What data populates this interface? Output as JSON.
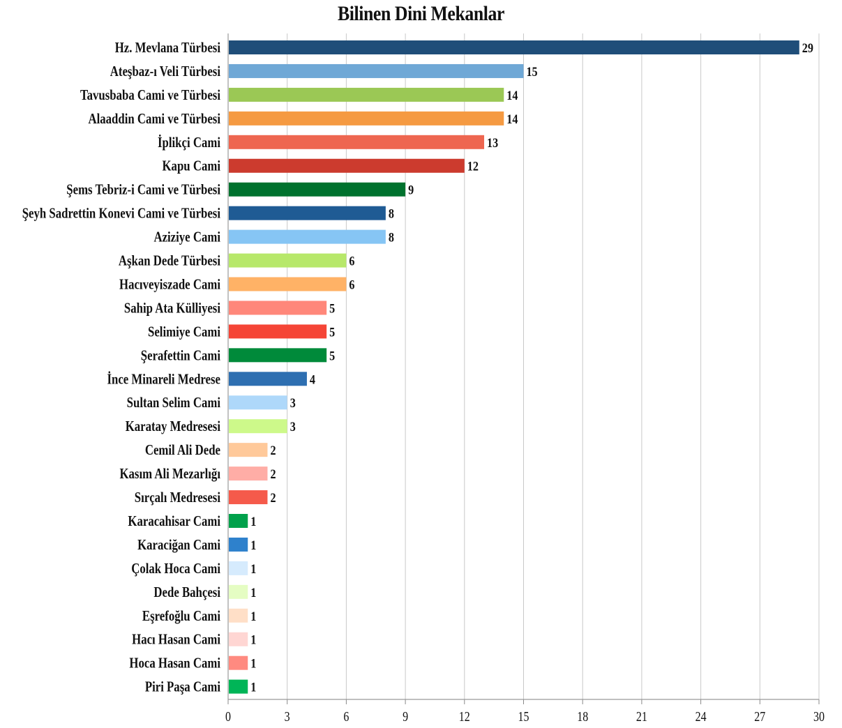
{
  "chart_data": {
    "type": "bar",
    "orientation": "horizontal",
    "title": "Bilinen Dini Mekanlar",
    "xlabel": "",
    "ylabel": "",
    "xlim": [
      0,
      30
    ],
    "ticks": [
      "0",
      "3",
      "6",
      "9",
      "12",
      "15",
      "18",
      "21",
      "24",
      "27",
      "30"
    ],
    "grid": "vertical",
    "legend": "none",
    "categories": [
      "Hz. Mevlana Türbesi",
      "Ateşbaz-ı Veli Türbesi",
      "Tavusbaba Cami ve Türbesi",
      "Alaaddin Cami ve Türbesi",
      "İplikçi Cami",
      "Kapu Cami",
      "Şems Tebriz-i Cami ve Türbesi",
      "Şeyh Sadrettin Konevi Cami ve Türbesi",
      "Aziziye Cami",
      "Aşkan Dede Türbesi",
      "Hacıveyiszade Cami",
      "Sahip Ata Külliyesi",
      "Selimiye Cami",
      "Şerafettin Cami",
      "İnce Minareli Medrese",
      "Sultan Selim Cami",
      "Karatay Medresesi",
      "Cemil Ali Dede",
      "Kasım Ali Mezarlığı",
      "Sırçalı Medresesi",
      "Karacahisar Cami",
      "Karaciğan Cami",
      "Çolak Hoca Cami",
      "Dede Bahçesi",
      "Eşrefoğlu Cami",
      "Hacı Hasan Cami",
      "Hoca Hasan Cami",
      "Piri Paşa Cami"
    ],
    "values": [
      29,
      15,
      14,
      14,
      13,
      12,
      9,
      8,
      8,
      6,
      6,
      5,
      5,
      5,
      4,
      3,
      3,
      2,
      2,
      2,
      1,
      1,
      1,
      1,
      1,
      1,
      1,
      1
    ],
    "colors": [
      "#1f4e79",
      "#6fa8d6",
      "#9bc855",
      "#f59a42",
      "#ee6650",
      "#cc3b2e",
      "#00722e",
      "#1f5b94",
      "#86c5f4",
      "#b7e86a",
      "#ffb266",
      "#ff877a",
      "#f54536",
      "#008a3a",
      "#2e6fb1",
      "#aed8fa",
      "#cdf98a",
      "#ffc99a",
      "#ffada6",
      "#f55a4b",
      "#00a14b",
      "#2e81cc",
      "#d6ebfd",
      "#e5fdc3",
      "#ffdfc7",
      "#ffd6d3",
      "#ff8a80",
      "#00b557"
    ]
  }
}
